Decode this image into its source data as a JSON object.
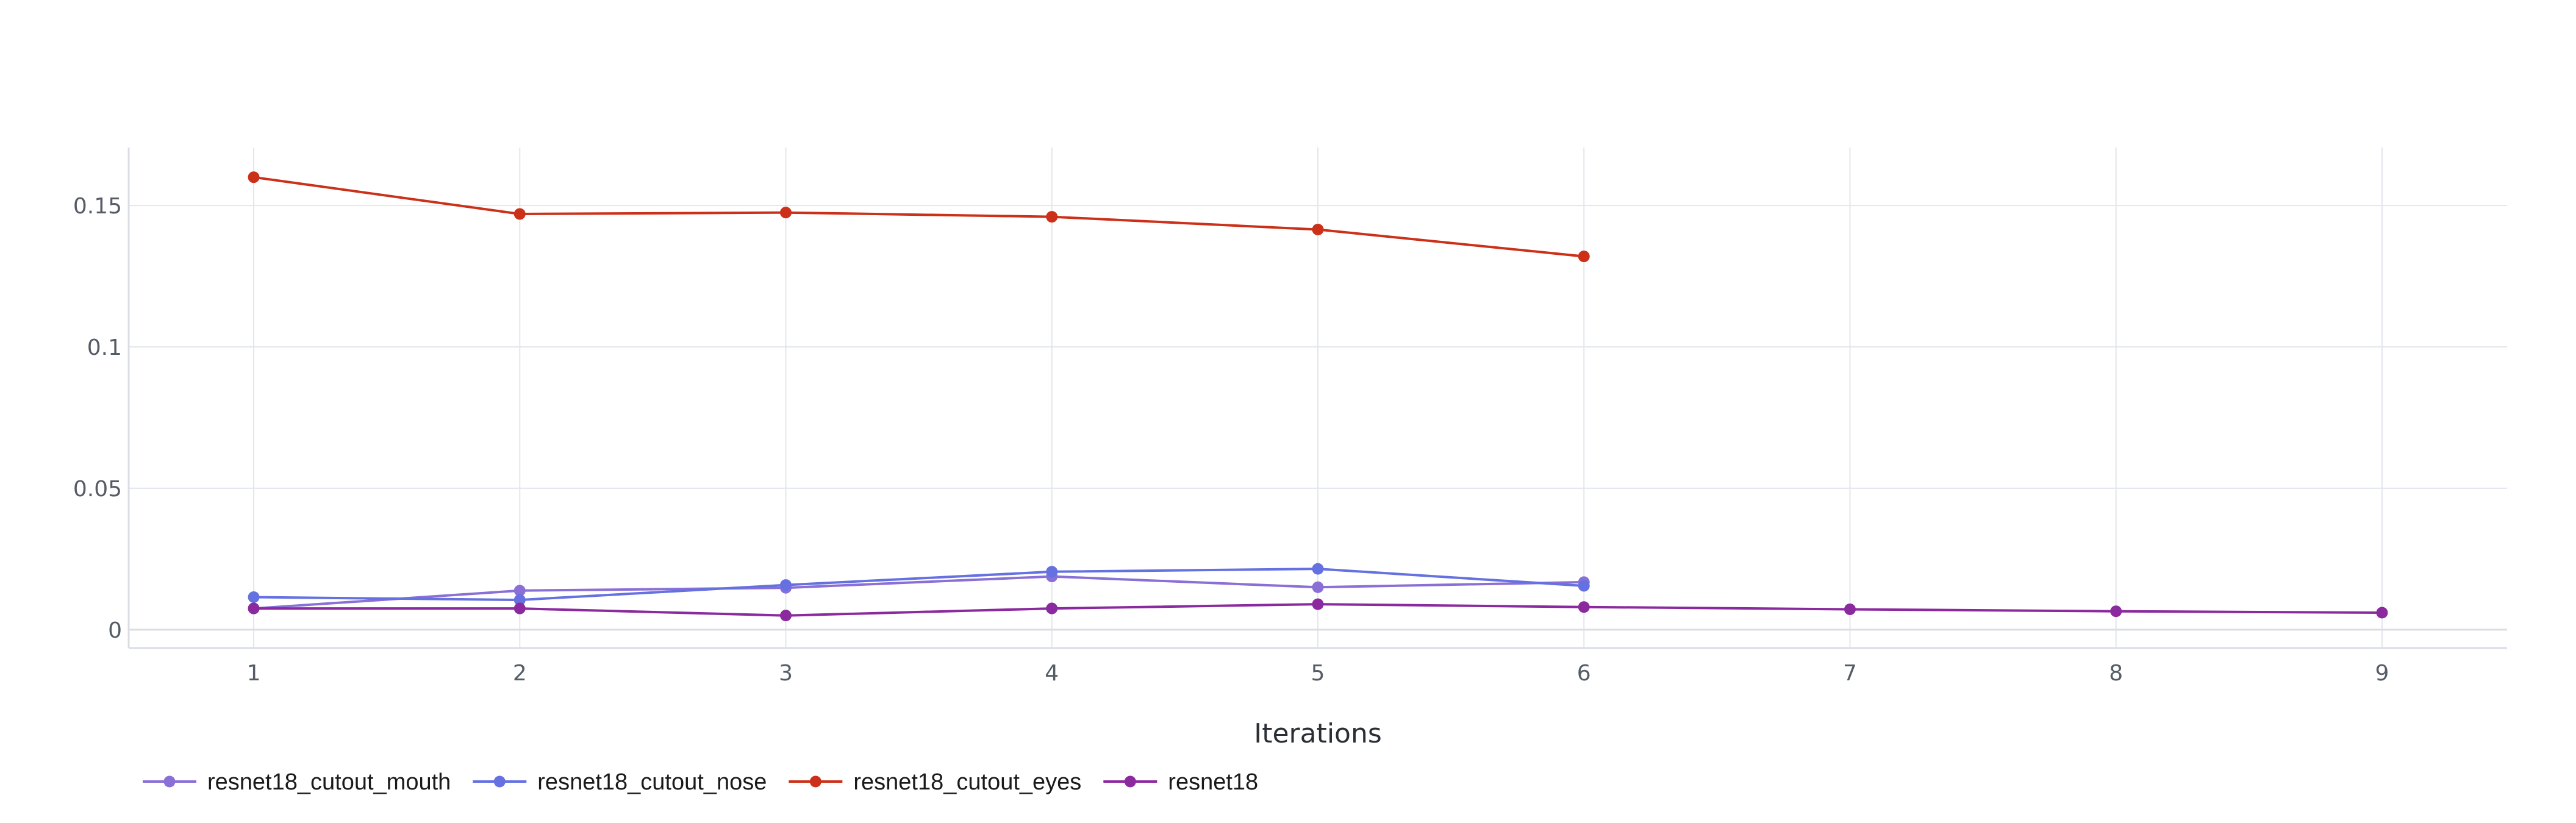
{
  "chart_data": {
    "type": "line",
    "title": "",
    "xlabel": "Iterations",
    "ylabel": "",
    "xlim": [
      0.53,
      9.47
    ],
    "ylim": [
      -0.0065,
      0.1705
    ],
    "x_ticks": [
      1,
      2,
      3,
      4,
      5,
      6,
      7,
      8,
      9
    ],
    "y_ticks": [
      0,
      0.05,
      0.1,
      0.15
    ],
    "y_tick_labels": [
      "0",
      "0.05",
      "0.1",
      "0.15"
    ],
    "grid": true,
    "legend_placement": "bottom-left",
    "series": [
      {
        "name": "resnet18_cutout_mouth",
        "color": "#8a6fd6",
        "x": [
          1,
          2,
          3,
          4,
          5,
          6
        ],
        "y": [
          0.0075,
          0.0138,
          0.0148,
          0.0188,
          0.015,
          0.0168
        ]
      },
      {
        "name": "resnet18_cutout_nose",
        "color": "#6571e0",
        "x": [
          1,
          2,
          3,
          4,
          5,
          6
        ],
        "y": [
          0.0115,
          0.0105,
          0.0158,
          0.0205,
          0.0215,
          0.0155
        ]
      },
      {
        "name": "resnet18_cutout_eyes",
        "color": "#cc3018",
        "x": [
          1,
          2,
          3,
          4,
          5,
          6
        ],
        "y": [
          0.16,
          0.147,
          0.1475,
          0.146,
          0.1415,
          0.132
        ]
      },
      {
        "name": "resnet18",
        "color": "#8b2a9e",
        "x": [
          1,
          2,
          3,
          4,
          5,
          6,
          7,
          8,
          9
        ],
        "y": [
          0.0075,
          0.0075,
          0.005,
          0.0075,
          0.009,
          0.008,
          0.0072,
          0.0065,
          0.006
        ]
      }
    ]
  }
}
